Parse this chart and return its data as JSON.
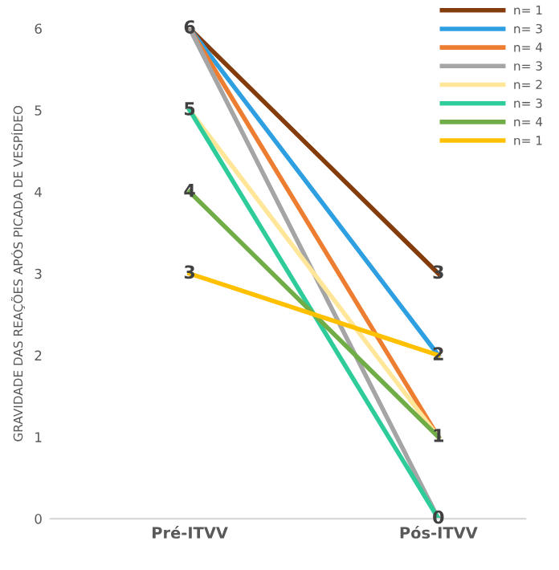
{
  "chart_data": {
    "type": "line",
    "ylabel": "GRAVIDADE DAS REAÇÕES APÓS PICADA DE VESPÍDEO",
    "categories": [
      "Pré-ITVV",
      "Pós-ITVV"
    ],
    "series": [
      {
        "name": "n= 1",
        "color": "#843c0c",
        "values": [
          6,
          3
        ],
        "value_labels": [
          "6",
          "3"
        ]
      },
      {
        "name": "n= 3",
        "color": "#2e9fe0",
        "values": [
          6,
          2
        ],
        "value_labels": [
          null,
          "2"
        ]
      },
      {
        "name": "n= 4",
        "color": "#ed7d31",
        "values": [
          6,
          1
        ],
        "value_labels": [
          null,
          "1"
        ]
      },
      {
        "name": "n= 3",
        "color": "#a5a5a5",
        "values": [
          6,
          0
        ],
        "value_labels": [
          null,
          "0"
        ]
      },
      {
        "name": "n= 2",
        "color": "#ffe699",
        "values": [
          5,
          1
        ],
        "value_labels": [
          "5",
          null
        ]
      },
      {
        "name": "n= 3",
        "color": "#2ecc9a",
        "values": [
          5,
          0
        ],
        "value_labels": [
          null,
          null
        ]
      },
      {
        "name": "n= 4",
        "color": "#70ad47",
        "values": [
          4,
          1
        ],
        "value_labels": [
          "4",
          null
        ]
      },
      {
        "name": "n= 1",
        "color": "#ffc000",
        "values": [
          3,
          2
        ],
        "value_labels": [
          "3",
          null
        ]
      }
    ],
    "ylim": [
      0,
      6
    ],
    "yticks": [
      0,
      1,
      2,
      3,
      4,
      5,
      6
    ],
    "grid": false,
    "legend": "top right",
    "marker": "none",
    "line_style": "solid"
  }
}
